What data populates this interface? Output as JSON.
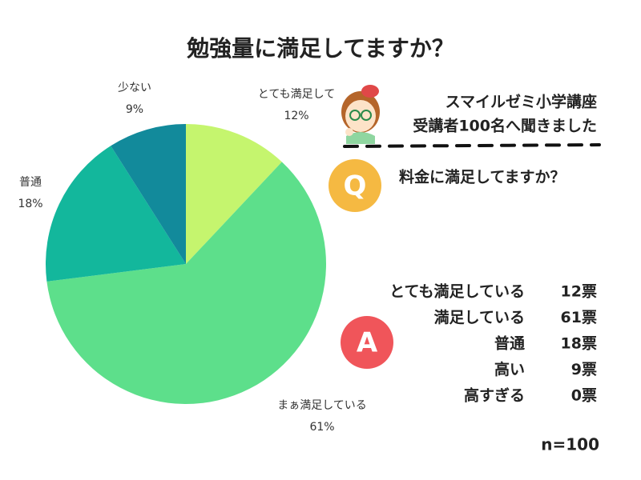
{
  "chart_data": {
    "type": "pie",
    "title": "勉強量に満足してますか？",
    "categories": [
      "とても満足して",
      "まぁ満足している",
      "普通",
      "少ない"
    ],
    "values": [
      12,
      61,
      18,
      9
    ],
    "value_labels": [
      "12%",
      "61%",
      "18%",
      "9%"
    ],
    "colors": [
      "#c5f56e",
      "#5ddf8b",
      "#13b79c",
      "#128a9b"
    ]
  },
  "panel": {
    "heading": [
      "スマイルゼミ小学講座",
      "受講者100名へ聞きました"
    ],
    "question_badge": "Q",
    "question": "料金に満足してますか？",
    "answer_badge": "A",
    "answers": [
      [
        "とても満足している",
        "12票"
      ],
      [
        "満足している",
        "61票"
      ],
      [
        "普通",
        "18票"
      ],
      [
        "高い",
        "9票"
      ],
      [
        "高すぎる",
        "0票"
      ]
    ],
    "sample_size": "n=100"
  }
}
